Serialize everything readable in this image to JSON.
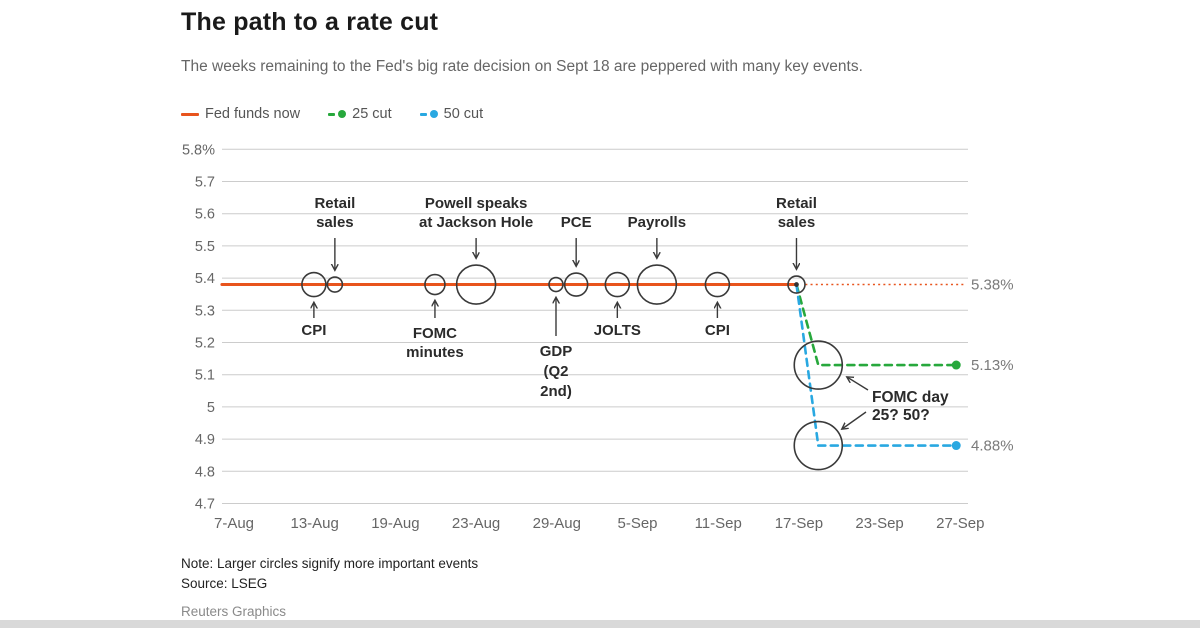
{
  "header": {
    "title": "The path to a rate cut",
    "subtitle": "The weeks remaining to the Fed's big rate decision on Sept 18 are peppered with many key events."
  },
  "legend": {
    "items": [
      {
        "label": "Fed funds now",
        "color": "#e8541d",
        "marker": "solid-line"
      },
      {
        "label": "25 cut",
        "color": "#27a83c",
        "marker": "dash-dot"
      },
      {
        "label": "50 cut",
        "color": "#29a8e1",
        "marker": "dash-dot"
      }
    ]
  },
  "colors": {
    "fed_funds": "#e8541d",
    "cut25": "#27a83c",
    "cut50": "#29a8e1",
    "grid": "#cccccc",
    "axis_text": "#666666",
    "annotation_text": "#2b2b2b",
    "value_label_text": "#7a7a7a",
    "circle_stroke": "#3a3a3a"
  },
  "chart_data": {
    "type": "line",
    "title": "The path to a rate cut",
    "xlabel": "",
    "ylabel": "",
    "grid": true,
    "ylim": [
      4.7,
      5.8
    ],
    "y_ticks": [
      {
        "label": "5.8%",
        "value": 5.8
      },
      {
        "label": "5.7",
        "value": 5.7
      },
      {
        "label": "5.6",
        "value": 5.6
      },
      {
        "label": "5.5",
        "value": 5.5
      },
      {
        "label": "5.4",
        "value": 5.4
      },
      {
        "label": "5.3",
        "value": 5.3
      },
      {
        "label": "5.2",
        "value": 5.2
      },
      {
        "label": "5.1",
        "value": 5.1
      },
      {
        "label": "5",
        "value": 5.0
      },
      {
        "label": "4.9",
        "value": 4.9
      },
      {
        "label": "4.8",
        "value": 4.8
      },
      {
        "label": "4.7",
        "value": 4.7
      }
    ],
    "x_ticks": [
      "7-Aug",
      "13-Aug",
      "19-Aug",
      "23-Aug",
      "29-Aug",
      "5-Sep",
      "11-Sep",
      "17-Sep",
      "23-Sep",
      "27-Sep"
    ],
    "series": [
      {
        "name": "Fed funds now",
        "color": "#e8541d",
        "style": "solid",
        "width": 3,
        "points": [
          [
            -0.15,
            5.38
          ],
          [
            6.97,
            5.38
          ]
        ],
        "end_label": null,
        "end_dot": false
      },
      {
        "name": "Fed funds now projected",
        "color": "#e8541d",
        "style": "dotted",
        "width": 1.5,
        "points": [
          [
            7.08,
            5.38
          ],
          [
            9.05,
            5.38
          ]
        ],
        "end_label": "5.38%",
        "end_dot": false
      },
      {
        "name": "25 cut",
        "color": "#27a83c",
        "style": "dashed",
        "width": 2.6,
        "points": [
          [
            6.97,
            5.38
          ],
          [
            7.24,
            5.13
          ],
          [
            8.9,
            5.13
          ]
        ],
        "end_label": "5.13%",
        "end_dot": true
      },
      {
        "name": "50 cut",
        "color": "#29a8e1",
        "style": "dashed",
        "width": 2.6,
        "points": [
          [
            6.97,
            5.38
          ],
          [
            7.24,
            4.88
          ],
          [
            8.9,
            4.88
          ]
        ],
        "end_label": "4.88%",
        "end_dot": true
      }
    ],
    "events": [
      {
        "label": "CPI",
        "lines": [
          "CPI"
        ],
        "x": 0.99,
        "rate": 5.38,
        "radius": 12,
        "importance": "medium",
        "label_side": "below",
        "long_arrow": false
      },
      {
        "label": "Retail sales",
        "lines": [
          "Retail",
          "sales"
        ],
        "x": 1.25,
        "rate": 5.38,
        "radius": 7.5,
        "importance": "small",
        "label_side": "above",
        "long_arrow": false
      },
      {
        "label": "FOMC minutes",
        "lines": [
          "FOMC",
          "minutes"
        ],
        "x": 2.49,
        "rate": 5.38,
        "radius": 10,
        "importance": "medium",
        "label_side": "below",
        "long_arrow": false
      },
      {
        "label": "Powell speaks at Jackson Hole",
        "lines": [
          "Powell speaks",
          "at Jackson Hole"
        ],
        "x": 3.0,
        "rate": 5.38,
        "radius": 19.5,
        "importance": "large",
        "label_side": "above",
        "long_arrow": false
      },
      {
        "label": "GDP (Q2 2nd)",
        "lines": [
          "GDP",
          "(Q2",
          "2nd)"
        ],
        "x": 3.99,
        "rate": 5.38,
        "radius": 7,
        "importance": "small",
        "label_side": "below",
        "long_arrow": true
      },
      {
        "label": "PCE",
        "lines": [
          "PCE"
        ],
        "x": 4.24,
        "rate": 5.38,
        "radius": 11.5,
        "importance": "medium",
        "label_side": "above",
        "long_arrow": false
      },
      {
        "label": "JOLTS",
        "lines": [
          "JOLTS"
        ],
        "x": 4.75,
        "rate": 5.38,
        "radius": 12,
        "importance": "medium",
        "label_side": "below",
        "long_arrow": false
      },
      {
        "label": "Payrolls",
        "lines": [
          "Payrolls"
        ],
        "x": 5.24,
        "rate": 5.38,
        "radius": 19.5,
        "importance": "large",
        "label_side": "above",
        "long_arrow": false
      },
      {
        "label": "CPI",
        "lines": [
          "CPI"
        ],
        "x": 5.99,
        "rate": 5.38,
        "radius": 12,
        "importance": "medium",
        "label_side": "below",
        "long_arrow": false
      },
      {
        "label": "Retail sales",
        "lines": [
          "Retail",
          "sales"
        ],
        "x": 6.97,
        "rate": 5.38,
        "radius": 8.5,
        "importance": "small",
        "label_side": "above",
        "long_arrow": false,
        "center_dot": true
      },
      {
        "label": "FOMC day 25 cut",
        "lines": [],
        "x": 7.24,
        "rate": 5.13,
        "radius": 24,
        "importance": "large",
        "label_side": "none",
        "long_arrow": false
      },
      {
        "label": "FOMC day 50 cut",
        "lines": [],
        "x": 7.24,
        "rate": 4.88,
        "radius": 24,
        "importance": "large",
        "label_side": "none",
        "long_arrow": false
      }
    ],
    "fomc_annotation": {
      "lines": [
        "FOMC day",
        "25? 50?"
      ]
    }
  },
  "footer": {
    "note": "Note: Larger circles signify more important events",
    "source": "Source: LSEG",
    "credit": "Reuters Graphics"
  }
}
